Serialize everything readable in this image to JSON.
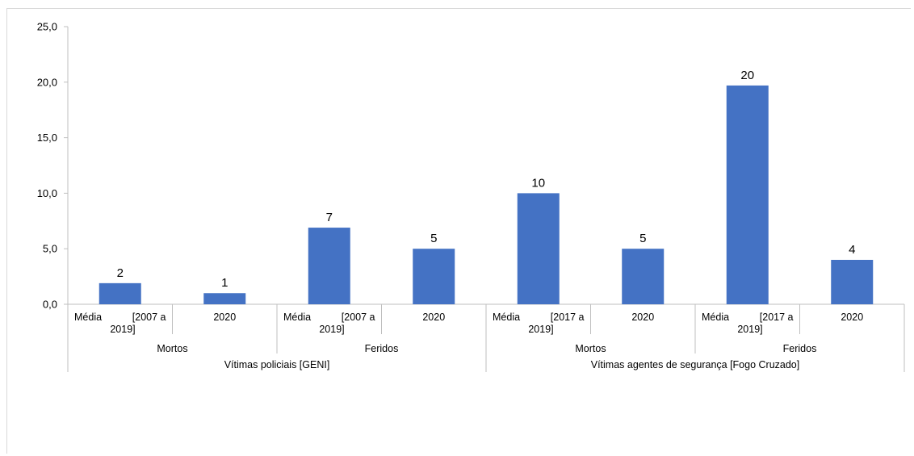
{
  "chart_data": {
    "type": "bar",
    "title": "",
    "xlabel": "",
    "ylabel": "",
    "ylim": [
      0,
      25
    ],
    "yticks": [
      "0,0",
      "5,0",
      "10,0",
      "15,0",
      "20,0",
      "25,0"
    ],
    "grid": false,
    "legend": "none",
    "bar_color": "#4472C4",
    "categories": [
      {
        "line1": "Média",
        "line1b": "[2007 a",
        "line2": "2019]"
      },
      {
        "line1": "2020",
        "line1b": "",
        "line2": ""
      },
      {
        "line1": "Média",
        "line1b": "[2007 a",
        "line2": "2019]"
      },
      {
        "line1": "2020",
        "line1b": "",
        "line2": ""
      },
      {
        "line1": "Média",
        "line1b": "[2017 a",
        "line2": "2019]"
      },
      {
        "line1": "2020",
        "line1b": "",
        "line2": ""
      },
      {
        "line1": "Média",
        "line1b": "[2017 a",
        "line2": "2019]"
      },
      {
        "line1": "2020",
        "line1b": "",
        "line2": ""
      }
    ],
    "values": [
      1.9,
      1.0,
      6.9,
      5.0,
      10.0,
      5.0,
      19.7,
      4.0
    ],
    "data_labels": [
      "2",
      "1",
      "7",
      "5",
      "10",
      "5",
      "20",
      "4"
    ],
    "subgroups": [
      "Mortos",
      "Feridos",
      "Mortos",
      "Feridos"
    ],
    "groups": [
      "Vítimas policiais [GENI]",
      "Vítimas agentes de segurança [Fogo Cruzado]"
    ]
  }
}
